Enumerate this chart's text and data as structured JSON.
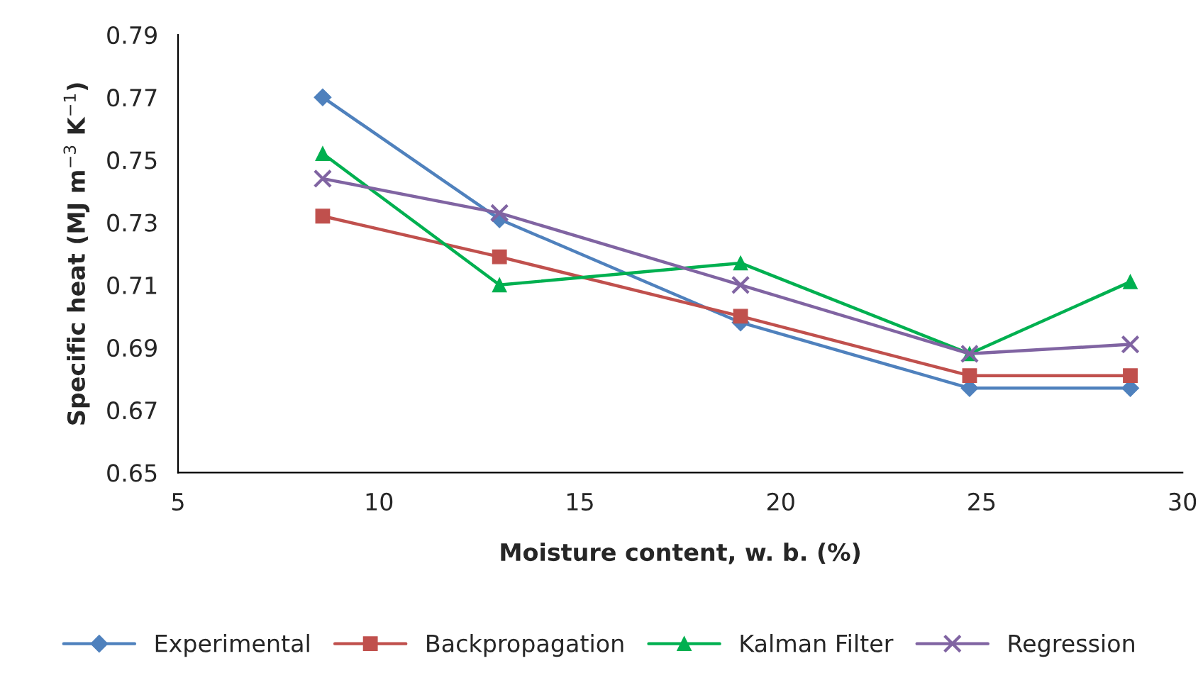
{
  "chart_data": {
    "type": "line",
    "xlabel": "Moisture content, w. b. (%)",
    "ylabel": "Specific heat (MJ m$^{−3}$ K$^{−1}$)",
    "x": [
      8.6,
      13.0,
      19.0,
      24.7,
      28.7
    ],
    "series": [
      {
        "name": "Experimental",
        "color": "#4f81bd",
        "marker": "diamond",
        "values": [
          0.77,
          0.731,
          0.698,
          0.677,
          0.677
        ]
      },
      {
        "name": "Backpropagation",
        "color": "#c0504d",
        "marker": "square",
        "values": [
          0.732,
          0.719,
          0.7,
          0.681,
          0.681
        ]
      },
      {
        "name": "Kalman Filter",
        "color": "#00b050",
        "marker": "triangle",
        "values": [
          0.752,
          0.71,
          0.717,
          0.688,
          0.711
        ]
      },
      {
        "name": "Regression",
        "color": "#8064a2",
        "marker": "cross",
        "values": [
          0.744,
          0.733,
          0.71,
          0.688,
          0.691
        ]
      }
    ],
    "xlim": [
      5,
      30
    ],
    "xticks": [
      5,
      10,
      15,
      20,
      25,
      30
    ],
    "ylim": [
      0.65,
      0.79
    ],
    "yticks": [
      {
        "value": 0.65,
        "label": "0.65"
      },
      {
        "value": 0.67,
        "label": "0.67"
      },
      {
        "value": 0.69,
        "label": "0.69"
      },
      {
        "value": 0.71,
        "label": "0.71"
      },
      {
        "value": 0.73,
        "label": "0.73"
      },
      {
        "value": 0.75,
        "label": "0.75"
      },
      {
        "value": 0.77,
        "label": "0.77"
      },
      {
        "value": 0.79,
        "label": "0.79"
      }
    ],
    "grid": false,
    "legend": "bottom"
  }
}
